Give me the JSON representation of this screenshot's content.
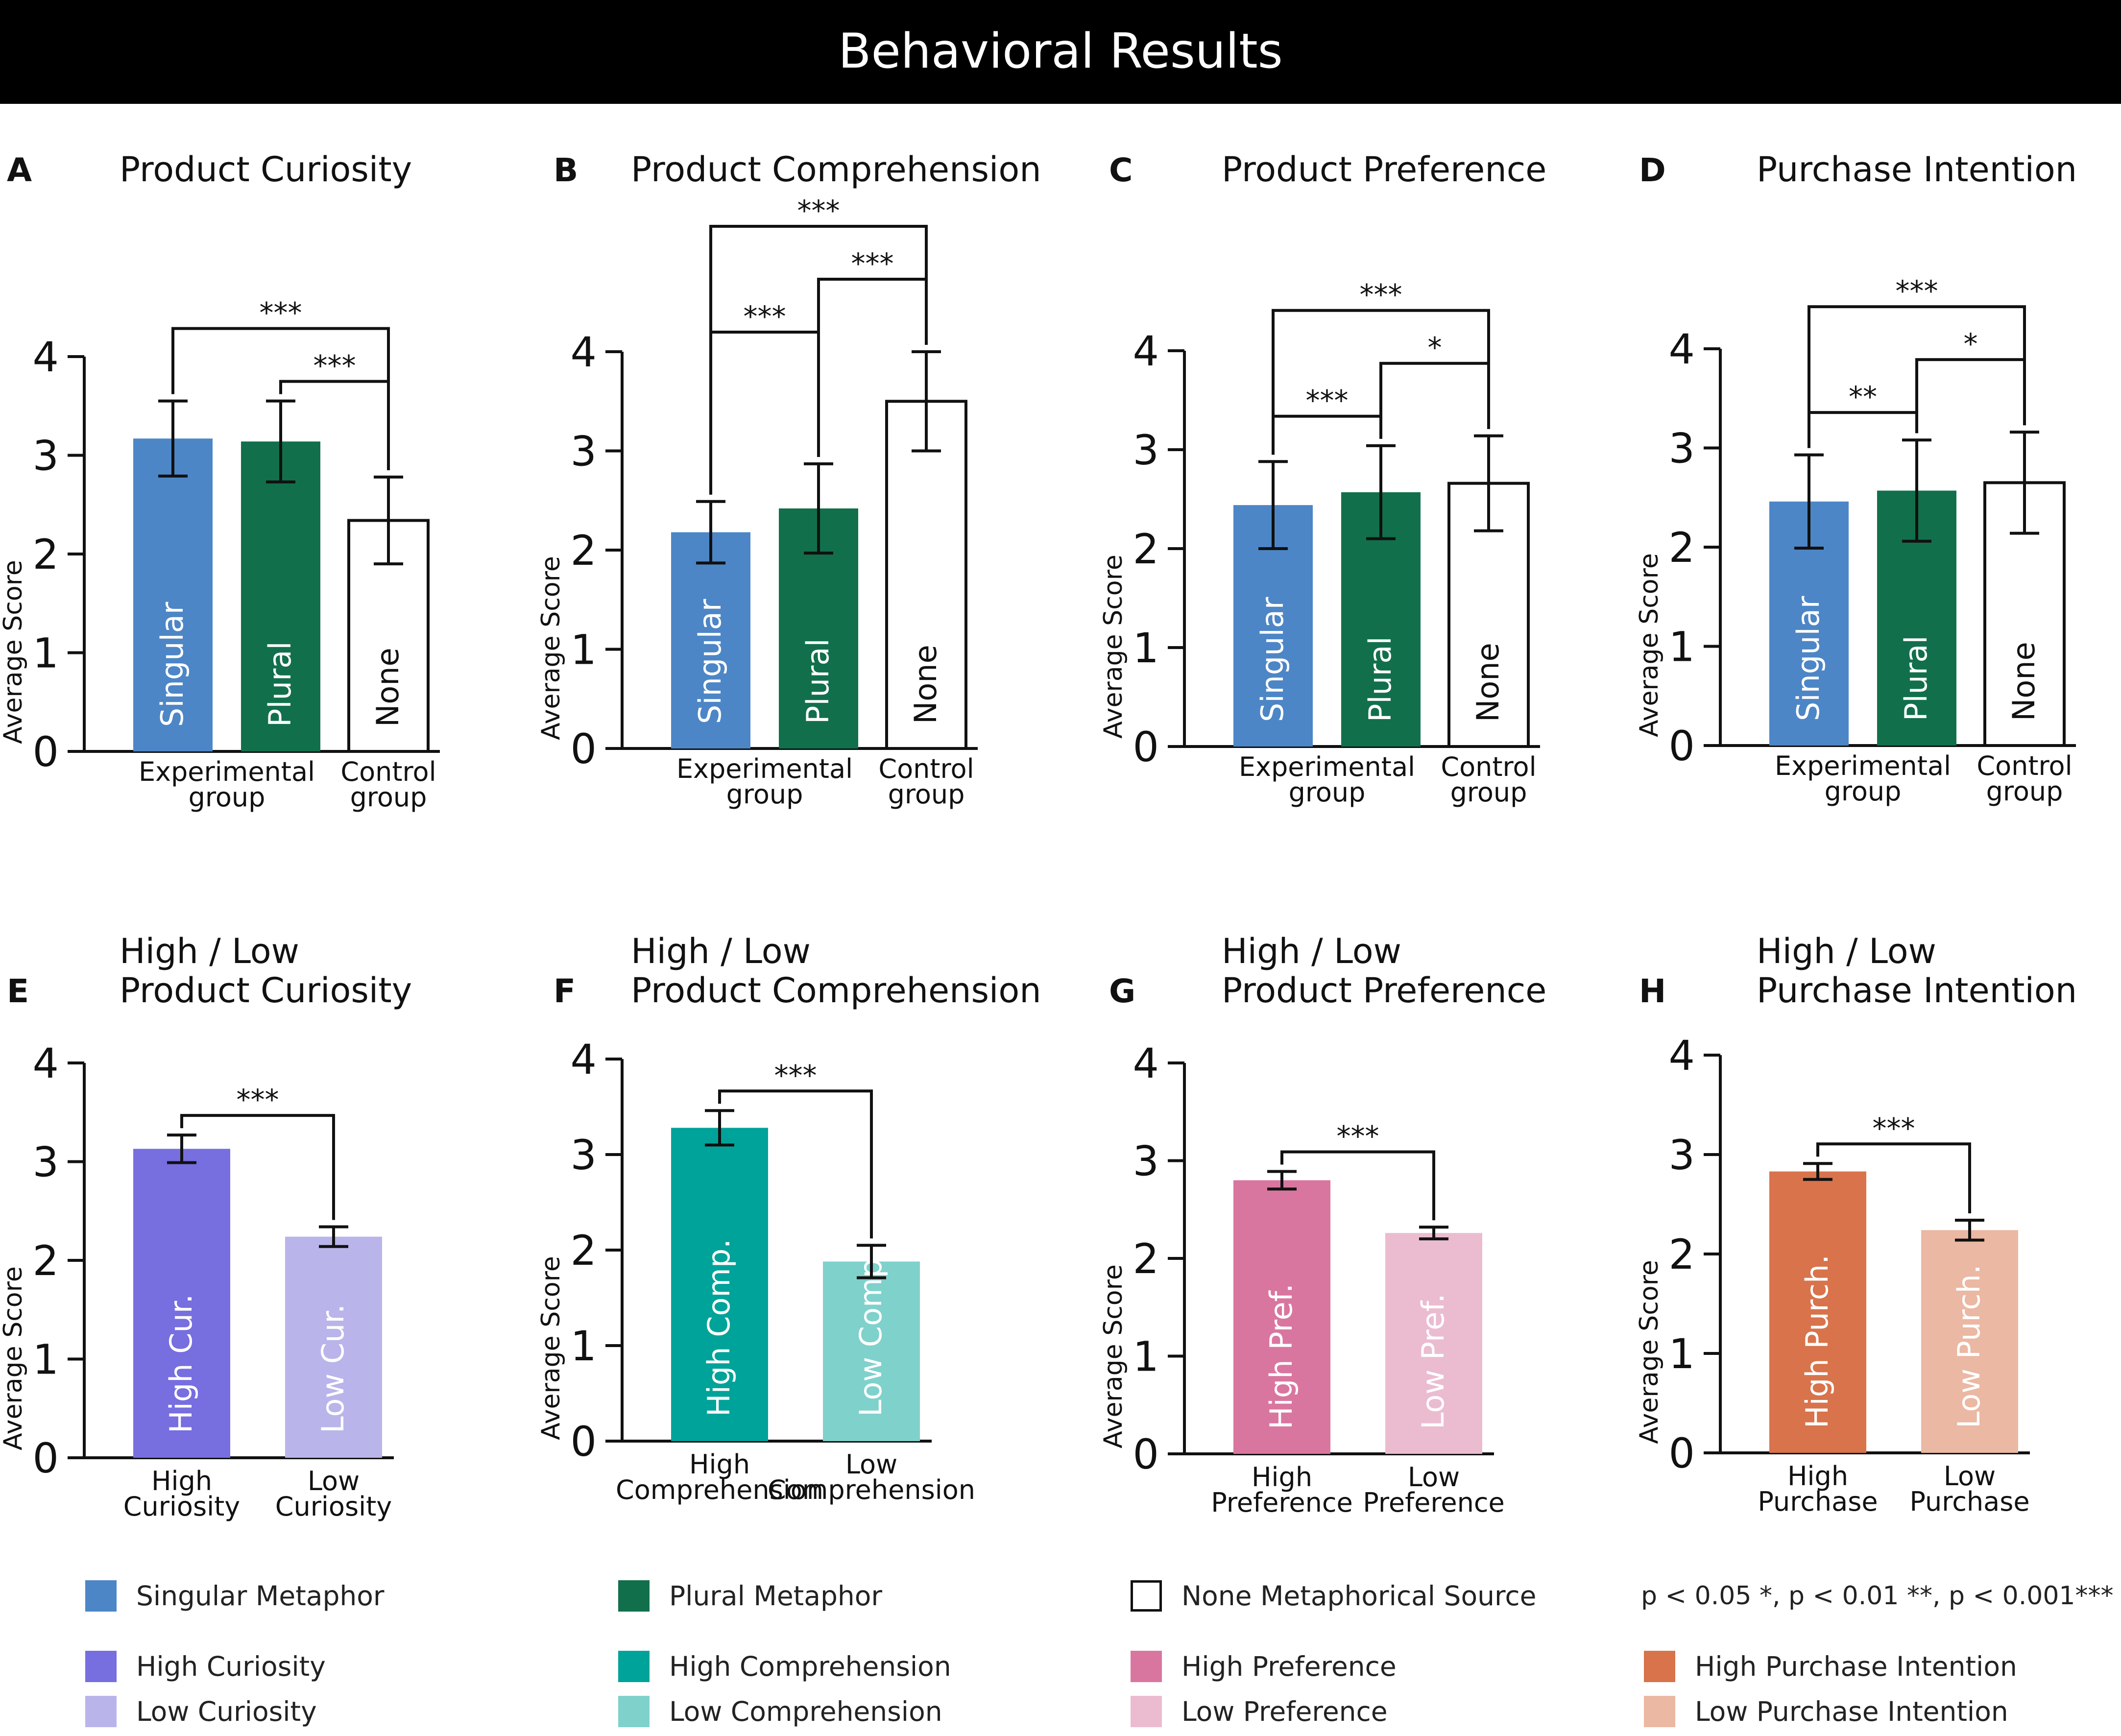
{
  "title": "Behavioral Results",
  "colors": {
    "singular": "#4d86c6",
    "plural": "#11704b",
    "none": "#ffffff",
    "high_curiosity": "#776ee0",
    "low_curiosity": "#b9b5ea",
    "high_comprehension": "#00a399",
    "low_comprehension": "#7fd1cc",
    "high_preference": "#d976a0",
    "low_preference": "#ebbcd0",
    "high_purchase": "#d8734b",
    "low_purchase": "#ebb8a3"
  },
  "chart_data": [
    {
      "type": "bar",
      "panel": "A",
      "title": "Product Curiosity",
      "ylabel": "Average Score",
      "ylim": [
        0,
        4
      ],
      "yticks": [
        "0",
        "1",
        "2",
        "3",
        "4"
      ],
      "group_labels": [
        {
          "line1": "Experimental",
          "line2": "group",
          "bars": [
            0,
            1
          ]
        },
        {
          "line1": "Control",
          "line2": "group",
          "bars": [
            2
          ]
        }
      ],
      "bars": [
        {
          "label": "Singular",
          "value": 3.17,
          "err": 0.38,
          "color": "singular"
        },
        {
          "label": "Plural",
          "value": 3.14,
          "err": 0.41,
          "color": "plural"
        },
        {
          "label": "None",
          "value": 2.34,
          "err": 0.44,
          "color": "none"
        }
      ],
      "brackets": [
        {
          "from": 0,
          "to": 2,
          "stars": "***",
          "level": 2
        },
        {
          "from": 1,
          "to": 2,
          "stars": "***",
          "level": 1
        }
      ]
    },
    {
      "type": "bar",
      "panel": "B",
      "title": "Product Comprehension",
      "ylabel": "Average Score",
      "ylim": [
        0,
        4
      ],
      "yticks": [
        "0",
        "1",
        "2",
        "3",
        "4"
      ],
      "group_labels": [
        {
          "line1": "Experimental",
          "line2": "group",
          "bars": [
            0,
            1
          ]
        },
        {
          "line1": "Control",
          "line2": "group",
          "bars": [
            2
          ]
        }
      ],
      "bars": [
        {
          "label": "Singular",
          "value": 2.18,
          "err": 0.31,
          "color": "singular"
        },
        {
          "label": "Plural",
          "value": 2.42,
          "err": 0.45,
          "color": "plural"
        },
        {
          "label": "None",
          "value": 3.5,
          "err": 0.5,
          "color": "none"
        }
      ],
      "brackets": [
        {
          "from": 0,
          "to": 1,
          "stars": "***",
          "level": 1
        },
        {
          "from": 1,
          "to": 2,
          "stars": "***",
          "level": 2
        },
        {
          "from": 0,
          "to": 2,
          "stars": "***",
          "level": 3
        }
      ]
    },
    {
      "type": "bar",
      "panel": "C",
      "title": "Product Preference",
      "ylabel": "Average Score",
      "ylim": [
        0,
        4
      ],
      "yticks": [
        "0",
        "1",
        "2",
        "3",
        "4"
      ],
      "group_labels": [
        {
          "line1": "Experimental",
          "line2": "group",
          "bars": [
            0,
            1
          ]
        },
        {
          "line1": "Control",
          "line2": "group",
          "bars": [
            2
          ]
        }
      ],
      "bars": [
        {
          "label": "Singular",
          "value": 2.44,
          "err": 0.44,
          "color": "singular"
        },
        {
          "label": "Plural",
          "value": 2.57,
          "err": 0.47,
          "color": "plural"
        },
        {
          "label": "None",
          "value": 2.66,
          "err": 0.48,
          "color": "none"
        }
      ],
      "brackets": [
        {
          "from": 0,
          "to": 1,
          "stars": "***",
          "level": 1
        },
        {
          "from": 1,
          "to": 2,
          "stars": "*",
          "level": 2
        },
        {
          "from": 0,
          "to": 2,
          "stars": "***",
          "level": 3
        }
      ]
    },
    {
      "type": "bar",
      "panel": "D",
      "title": "Purchase Intention",
      "ylabel": "Average Score",
      "ylim": [
        0,
        4
      ],
      "yticks": [
        "0",
        "1",
        "2",
        "3",
        "4"
      ],
      "group_labels": [
        {
          "line1": "Experimental",
          "line2": "group",
          "bars": [
            0,
            1
          ]
        },
        {
          "line1": "Control",
          "line2": "group",
          "bars": [
            2
          ]
        }
      ],
      "bars": [
        {
          "label": "Singular",
          "value": 2.46,
          "err": 0.47,
          "color": "singular"
        },
        {
          "label": "Plural",
          "value": 2.57,
          "err": 0.51,
          "color": "plural"
        },
        {
          "label": "None",
          "value": 2.65,
          "err": 0.51,
          "color": "none"
        }
      ],
      "brackets": [
        {
          "from": 0,
          "to": 1,
          "stars": "**",
          "level": 1
        },
        {
          "from": 1,
          "to": 2,
          "stars": "*",
          "level": 2
        },
        {
          "from": 0,
          "to": 2,
          "stars": "***",
          "level": 3
        }
      ]
    },
    {
      "type": "bar",
      "panel": "E",
      "title_line1": "High / Low",
      "title": "Product Curiosity",
      "ylabel": "Average Score",
      "ylim": [
        0,
        4
      ],
      "yticks": [
        "0",
        "1",
        "2",
        "3",
        "4"
      ],
      "bars": [
        {
          "label": "High Cur.",
          "value": 3.13,
          "err": 0.14,
          "color": "high_curiosity",
          "xlabel1": "High",
          "xlabel2": "Curiosity"
        },
        {
          "label": "Low Cur.",
          "value": 2.24,
          "err": 0.1,
          "color": "low_curiosity",
          "xlabel1": "Low",
          "xlabel2": "Curiosity"
        }
      ],
      "brackets": [
        {
          "from": 0,
          "to": 1,
          "stars": "***",
          "level": 1
        }
      ]
    },
    {
      "type": "bar",
      "panel": "F",
      "title_line1": "High / Low",
      "title": "Product Comprehension",
      "ylabel": "Average Score",
      "ylim": [
        0,
        4
      ],
      "yticks": [
        "0",
        "1",
        "2",
        "3",
        "4"
      ],
      "bars": [
        {
          "label": "High Comp.",
          "value": 3.28,
          "err": 0.18,
          "color": "high_comprehension",
          "xlabel1": "High",
          "xlabel2": "Comprehension"
        },
        {
          "label": "Low Comp.",
          "value": 1.88,
          "err": 0.17,
          "color": "low_comprehension",
          "xlabel1": "Low",
          "xlabel2": "Comprehension"
        }
      ],
      "brackets": [
        {
          "from": 0,
          "to": 1,
          "stars": "***",
          "level": 1
        }
      ]
    },
    {
      "type": "bar",
      "panel": "G",
      "title_line1": "High / Low",
      "title": "Product Preference",
      "ylabel": "Average Score",
      "ylim": [
        0,
        4
      ],
      "yticks": [
        "0",
        "1",
        "2",
        "3",
        "4"
      ],
      "bars": [
        {
          "label": "High Pref.",
          "value": 2.8,
          "err": 0.09,
          "color": "high_preference",
          "xlabel1": "High",
          "xlabel2": "Preference"
        },
        {
          "label": "Low Pref.",
          "value": 2.26,
          "err": 0.06,
          "color": "low_preference",
          "xlabel1": "Low",
          "xlabel2": "Preference"
        }
      ],
      "brackets": [
        {
          "from": 0,
          "to": 1,
          "stars": "***",
          "level": 1
        }
      ]
    },
    {
      "type": "bar",
      "panel": "H",
      "title_line1": "High / Low",
      "title": "Purchase Intention",
      "ylabel": "Average Score",
      "ylim": [
        0,
        4
      ],
      "yticks": [
        "0",
        "1",
        "2",
        "3",
        "4"
      ],
      "bars": [
        {
          "label": "High Purch.",
          "value": 2.83,
          "err": 0.08,
          "color": "high_purchase",
          "xlabel1": "High",
          "xlabel2": "Purchase"
        },
        {
          "label": "Low Purch.",
          "value": 2.24,
          "err": 0.1,
          "color": "low_purchase",
          "xlabel1": "Low",
          "xlabel2": "Purchase"
        }
      ],
      "brackets": [
        {
          "from": 0,
          "to": 1,
          "stars": "***",
          "level": 1
        }
      ]
    }
  ],
  "legend": {
    "singular": "Singular Metaphor",
    "plural": "Plural Metaphor",
    "none": "None Metaphorical Source",
    "significance": "p < 0.05 *,   p < 0.01 **,   p < 0.001***",
    "high_curiosity": "High Curiosity",
    "low_curiosity": "Low Curiosity",
    "high_comprehension": "High Comprehension",
    "low_comprehension": "Low Comprehension",
    "high_preference": "High Preference",
    "low_preference": "Low Preference",
    "high_purchase": "High Purchase Intention",
    "low_purchase": "Low Purchase Intention"
  }
}
